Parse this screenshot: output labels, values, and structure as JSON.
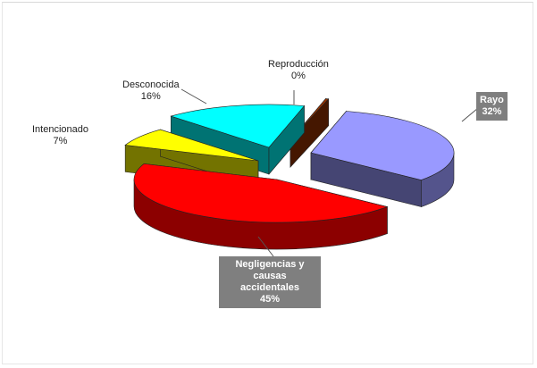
{
  "chart_data": {
    "type": "pie",
    "title": "",
    "slices": [
      {
        "label": "Rayo",
        "value": 32,
        "value_text": "32%",
        "color": "#9999ff"
      },
      {
        "label": "Negligencias y causas accidentales",
        "value": 45,
        "value_text": "45%",
        "color": "#ff0000"
      },
      {
        "label": "Intencionado",
        "value": 7,
        "value_text": "7%",
        "color": "#ffff00"
      },
      {
        "label": "Desconocida",
        "value": 16,
        "value_text": "16%",
        "color": "#00ffff"
      },
      {
        "label": "Reproducción",
        "value": 0,
        "value_text": "0%",
        "color": "#993300"
      }
    ],
    "style": "3d-exploded",
    "legend": "none"
  }
}
